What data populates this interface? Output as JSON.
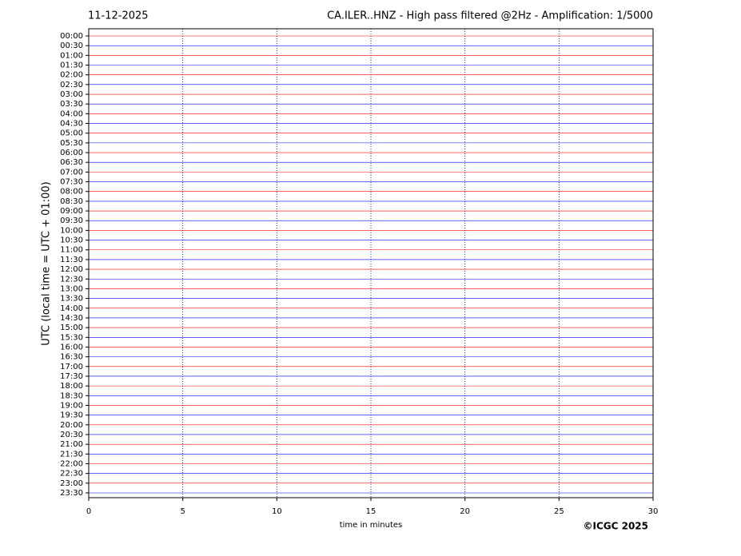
{
  "chart_data": {
    "type": "helicorder",
    "date": "11-12-2025",
    "title": "CA.ILER..HNZ - High pass filtered @2Hz - Amplification: 1/5000",
    "y_label": "UTC (local time = UTC + 01:00)",
    "x_label": "time in minutes",
    "credit": "©ICGC 2025",
    "categories": [
      "00:00",
      "00:30",
      "01:00",
      "01:30",
      "02:00",
      "02:30",
      "03:00",
      "03:30",
      "04:00",
      "04:30",
      "05:00",
      "05:30",
      "06:00",
      "06:30",
      "07:00",
      "07:30",
      "08:00",
      "08:30",
      "09:00",
      "09:30",
      "10:00",
      "10:30",
      "11:00",
      "11:30",
      "12:00",
      "12:30",
      "13:00",
      "13:30",
      "14:00",
      "14:30",
      "15:00",
      "15:30",
      "16:00",
      "16:30",
      "17:00",
      "17:30",
      "18:00",
      "18:30",
      "19:00",
      "19:30",
      "20:00",
      "20:30",
      "21:00",
      "21:30",
      "22:00",
      "22:30",
      "23:00",
      "23:30"
    ],
    "colors": [
      "#ff0000",
      "#0000ff"
    ],
    "xlim": [
      0,
      30
    ],
    "xticks": [
      0,
      5,
      10,
      15,
      20,
      25,
      30
    ],
    "grid": true
  }
}
